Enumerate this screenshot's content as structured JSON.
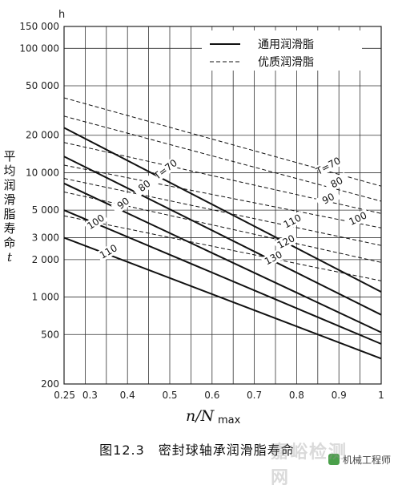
{
  "chart_data": {
    "type": "line",
    "y_unit": "h",
    "ylabel_chars": [
      "平",
      "均",
      "润",
      "滑",
      "脂",
      "寿",
      "命",
      "t"
    ],
    "xlabel": {
      "var": "n/N",
      "sub": "max"
    },
    "xlim": [
      0.25,
      1.0
    ],
    "ylim": [
      200,
      150000
    ],
    "y_scale": "log",
    "grid": true,
    "x_ticks": [
      {
        "value": 0.25,
        "label": "0.25"
      },
      {
        "value": 0.3,
        "label": "0.3"
      },
      {
        "value": 0.4,
        "label": "0.4"
      },
      {
        "value": 0.5,
        "label": "0.5"
      },
      {
        "value": 0.6,
        "label": "0.6"
      },
      {
        "value": 0.7,
        "label": "0.7"
      },
      {
        "value": 0.8,
        "label": "0.8"
      },
      {
        "value": 0.9,
        "label": "0.9"
      },
      {
        "value": 1.0,
        "label": "1"
      }
    ],
    "x_grid": [
      0.25,
      0.3,
      0.35,
      0.4,
      0.45,
      0.5,
      0.55,
      0.6,
      0.65,
      0.7,
      0.75,
      0.8,
      0.85,
      0.9,
      0.95,
      1.0
    ],
    "y_ticks": [
      {
        "value": 150000,
        "label": "150 000"
      },
      {
        "value": 100000,
        "label": "100 000"
      },
      {
        "value": 50000,
        "label": "50 000"
      },
      {
        "value": 20000,
        "label": "20 000"
      },
      {
        "value": 10000,
        "label": "10 000"
      },
      {
        "value": 5000,
        "label": "5 000"
      },
      {
        "value": 3000,
        "label": "3 000"
      },
      {
        "value": 2000,
        "label": "2 000"
      },
      {
        "value": 1000,
        "label": "1 000"
      },
      {
        "value": 500,
        "label": "500"
      },
      {
        "value": 200,
        "label": "200"
      }
    ],
    "legend": {
      "placement": "top-right",
      "entries": [
        {
          "label": "通用润滑脂",
          "style": "solid"
        },
        {
          "label": "优质润滑脂",
          "style": "dashed"
        }
      ]
    },
    "series": [
      {
        "style": "solid",
        "label": "T=70",
        "x": [
          0.25,
          1.0
        ],
        "y": [
          23000,
          1100
        ]
      },
      {
        "style": "solid",
        "label": "80",
        "x": [
          0.25,
          1.0
        ],
        "y": [
          13500,
          720
        ]
      },
      {
        "style": "solid",
        "label": "90",
        "x": [
          0.25,
          1.0
        ],
        "y": [
          8200,
          520
        ]
      },
      {
        "style": "solid",
        "label": "100",
        "x": [
          0.25,
          1.0
        ],
        "y": [
          5000,
          420
        ]
      },
      {
        "style": "solid",
        "label": "110",
        "x": [
          0.25,
          1.0
        ],
        "y": [
          3000,
          320
        ]
      },
      {
        "style": "dashed",
        "label": "T=70",
        "x": [
          0.25,
          1.0
        ],
        "y": [
          40000,
          7800
        ]
      },
      {
        "style": "dashed",
        "label": "80",
        "x": [
          0.25,
          1.0
        ],
        "y": [
          28500,
          5900
        ]
      },
      {
        "style": "dashed",
        "label": "90",
        "x": [
          0.25,
          1.0
        ],
        "y": [
          17500,
          4700
        ]
      },
      {
        "style": "dashed",
        "label": "100",
        "x": [
          0.25,
          1.0
        ],
        "y": [
          11500,
          3600
        ]
      },
      {
        "style": "dashed",
        "label": "110",
        "x": [
          0.25,
          1.0
        ],
        "y": [
          9000,
          2600
        ]
      },
      {
        "style": "dashed",
        "label": "120",
        "x": [
          0.25,
          1.0
        ],
        "y": [
          7000,
          1900
        ]
      },
      {
        "style": "dashed",
        "label": "130",
        "x": [
          0.25,
          1.0
        ],
        "y": [
          4500,
          1350
        ]
      }
    ],
    "annotations": [
      {
        "text": "T=70",
        "x": 0.49,
        "y": 10300,
        "rotate": -37
      },
      {
        "text": "80",
        "x": 0.44,
        "y": 7600,
        "rotate": -37
      },
      {
        "text": "90",
        "x": 0.39,
        "y": 5500,
        "rotate": -37
      },
      {
        "text": "100",
        "x": 0.325,
        "y": 3900,
        "rotate": -34
      },
      {
        "text": "110",
        "x": 0.355,
        "y": 2250,
        "rotate": -30
      },
      {
        "text": "T=70",
        "x": 0.875,
        "y": 11000,
        "rotate": -28
      },
      {
        "text": "80",
        "x": 0.895,
        "y": 8100,
        "rotate": -28
      },
      {
        "text": "90",
        "x": 0.875,
        "y": 6000,
        "rotate": -28
      },
      {
        "text": "100",
        "x": 0.945,
        "y": 4150,
        "rotate": -26
      },
      {
        "text": "110",
        "x": 0.79,
        "y": 3950,
        "rotate": -28
      },
      {
        "text": "120",
        "x": 0.775,
        "y": 2700,
        "rotate": -28
      },
      {
        "text": "130",
        "x": 0.745,
        "y": 2000,
        "rotate": -28
      }
    ]
  },
  "caption": "图12.3　密封球轴承润滑脂寿命",
  "watermark": {
    "site": "嘉峪检测网",
    "account": "机械工程师"
  }
}
